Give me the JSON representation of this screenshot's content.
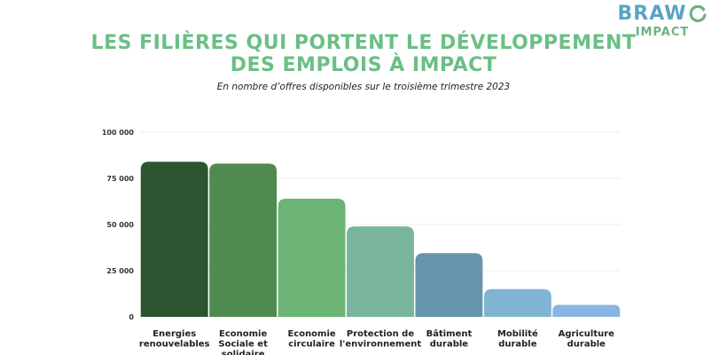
{
  "logo": {
    "brand": "BRAW",
    "sub": "IMPACT",
    "ring_color": "#6cb37f"
  },
  "chart_data": {
    "type": "bar",
    "title": "Les filières qui portent le développement des emplois à impact",
    "subtitle": "En nombre d’offres disponibles sur le troisième trimestre 2023",
    "xlabel": "",
    "ylabel": "",
    "ylim": [
      0,
      100000
    ],
    "yticks": [
      0,
      25000,
      50000,
      75000,
      100000
    ],
    "ytick_labels": [
      "0",
      "25 000",
      "50 000",
      "75 000",
      "100 000"
    ],
    "categories": [
      [
        "Energies",
        "renouvelables"
      ],
      [
        "Economie",
        "Sociale et",
        "solidaire"
      ],
      [
        "Economie",
        "circulaire"
      ],
      [
        "Protection de",
        "l'environnement"
      ],
      [
        "Bâtiment",
        "durable"
      ],
      [
        "Mobilité",
        "durable"
      ],
      [
        "Agriculture",
        "durable"
      ]
    ],
    "values": [
      84000,
      83000,
      64000,
      49000,
      34500,
      15000,
      6500
    ],
    "colors": [
      "#2b5530",
      "#4f8a4f",
      "#6cb474",
      "#78b59c",
      "#6795ad",
      "#7fb5d3",
      "#88b5e2"
    ],
    "grid": true,
    "legend": "none"
  }
}
